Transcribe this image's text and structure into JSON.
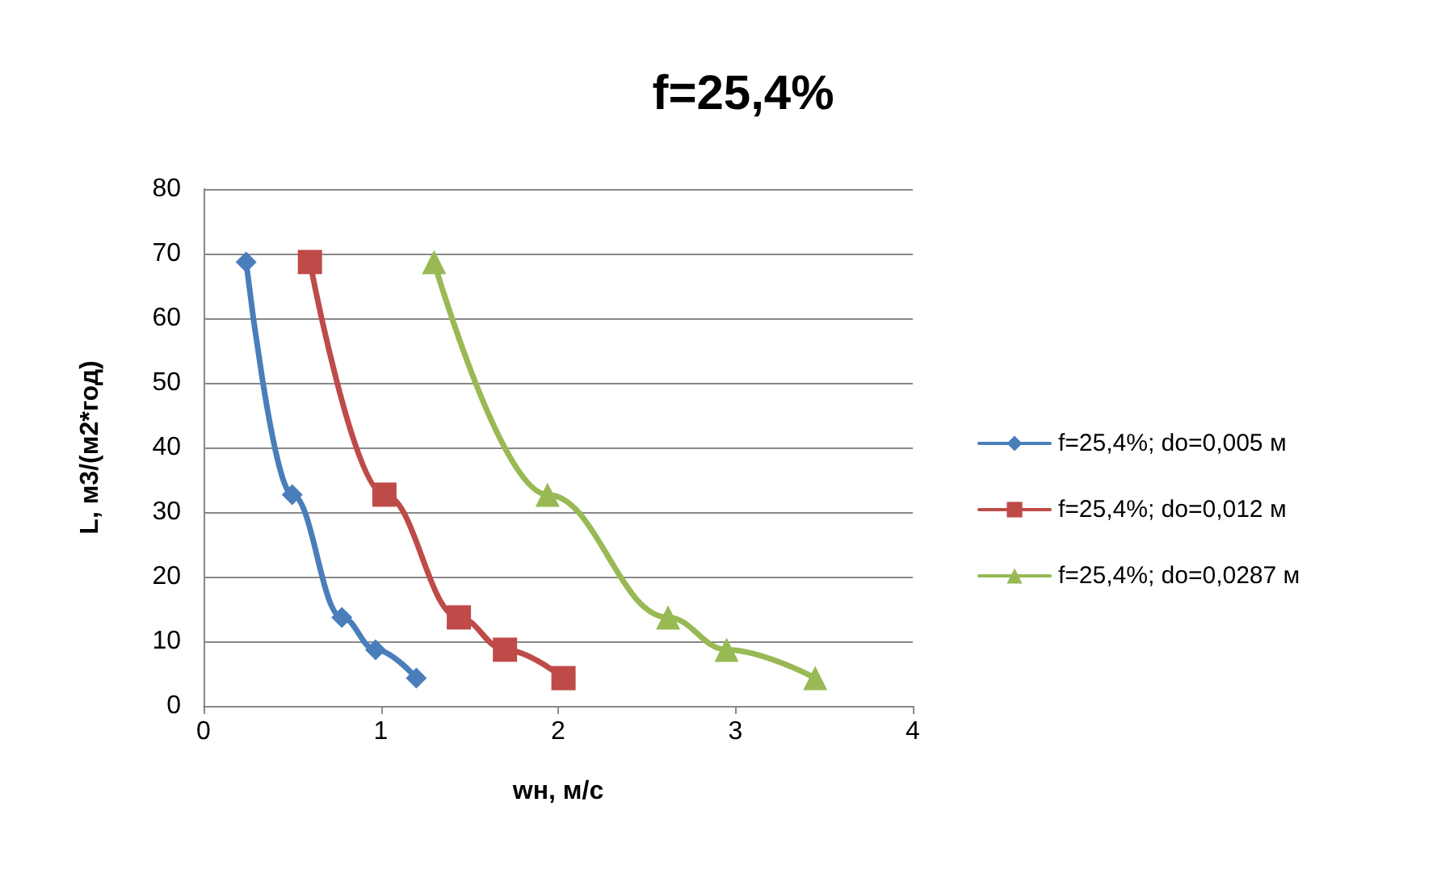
{
  "chart_data": {
    "type": "line",
    "title": "f=25,4%",
    "xlabel": "wн, м/с",
    "ylabel": "L, м3/(м2*год)",
    "xlim": [
      0,
      4
    ],
    "xticks": [
      0,
      1,
      2,
      3,
      4
    ],
    "ylim": [
      0,
      80
    ],
    "yticks": [
      0,
      10,
      20,
      30,
      40,
      50,
      60,
      70,
      80
    ],
    "grid": "y",
    "legend": "right",
    "series": [
      {
        "name": "f=25,4%; do=0,005 м",
        "color": "#4a7ebb",
        "marker": "diamond",
        "x": [
          0.24,
          0.5,
          0.78,
          0.97,
          1.2
        ],
        "values": [
          68.7,
          32.7,
          13.7,
          8.7,
          4.3
        ]
      },
      {
        "name": "f=25,4%; do=0,012 м",
        "color": "#be4b48",
        "marker": "square",
        "x": [
          0.6,
          1.02,
          1.44,
          1.7,
          2.03
        ],
        "values": [
          68.7,
          32.7,
          13.7,
          8.7,
          4.3
        ]
      },
      {
        "name": "f=25,4%; do=0,0287 м",
        "color": "#98b954",
        "marker": "triangle",
        "x": [
          1.3,
          1.94,
          2.62,
          2.95,
          3.45
        ],
        "values": [
          68.7,
          32.7,
          13.7,
          8.7,
          4.3
        ]
      }
    ]
  }
}
